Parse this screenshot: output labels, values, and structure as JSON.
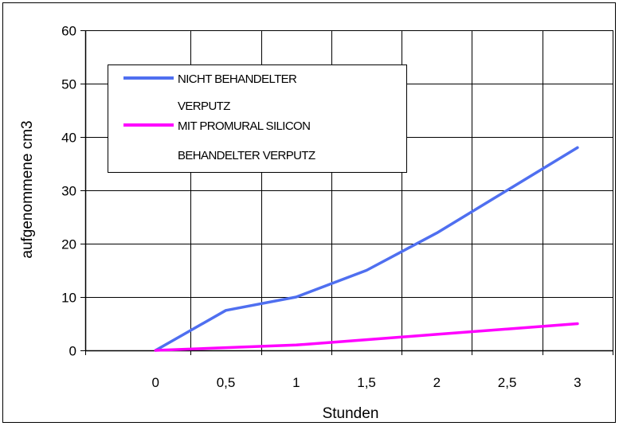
{
  "chart_data": {
    "type": "line",
    "xlabel": "Stunden",
    "ylabel": "aufgenommene cm3",
    "x": [
      0,
      0.5,
      1,
      1.5,
      2,
      2.5,
      3
    ],
    "x_tick_labels": [
      "0",
      "0,5",
      "1",
      "1,5",
      "2",
      "2,5",
      "3"
    ],
    "y_tick_labels": [
      "0",
      "10",
      "20",
      "30",
      "40",
      "50",
      "60"
    ],
    "xlim": [
      -0.5,
      3.25
    ],
    "ylim": [
      0,
      60
    ],
    "grid": true,
    "legend_position": "top-left",
    "series": [
      {
        "name_lines": [
          "NICHT BEHANDELTER",
          "VERPUTZ"
        ],
        "color": "#4f6ff0",
        "values": [
          0,
          7.5,
          10,
          15,
          22,
          30,
          38
        ]
      },
      {
        "name_lines": [
          "MIT PROMURAL SILICON",
          "BEHANDELTER VERPUTZ"
        ],
        "color": "#ff00ff",
        "values": [
          0,
          0.5,
          1,
          2,
          3,
          4,
          5
        ]
      }
    ]
  }
}
